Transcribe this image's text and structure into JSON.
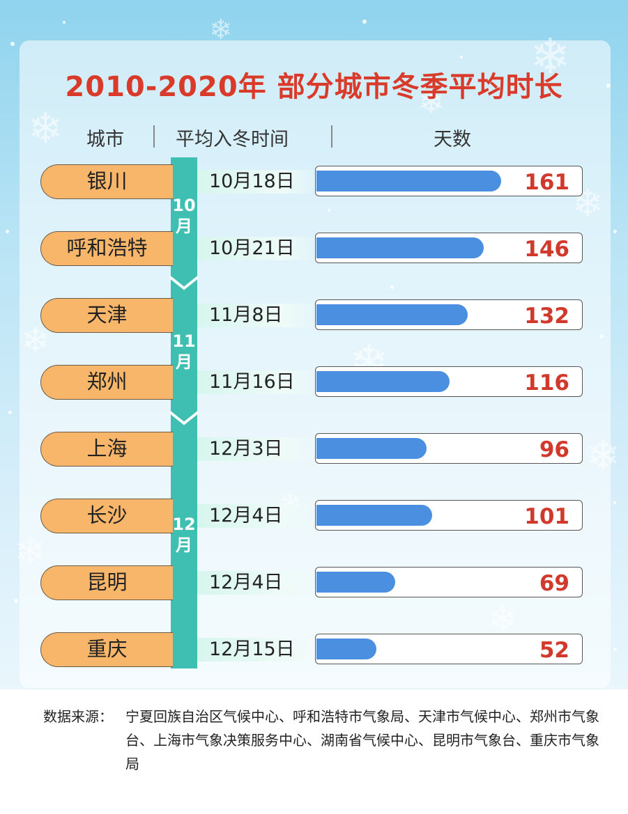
{
  "title": "2010-2020年 部分城市冬季平均时长",
  "headers": {
    "city": "城市",
    "date": "平均入冬时间",
    "days": "天数"
  },
  "months": [
    "10\n月",
    "11\n月",
    "12\n月"
  ],
  "colors": {
    "title": "#d93a2a",
    "timeline": "#3fbfb2",
    "city_fill": "#f7b66a",
    "bar": "#4a8fe0",
    "value": "#d0392b"
  },
  "chart_data": {
    "type": "bar",
    "orientation": "horizontal",
    "categories": [
      "银川",
      "呼和浩特",
      "天津",
      "郑州",
      "上海",
      "长沙",
      "昆明",
      "重庆"
    ],
    "start_dates": [
      "10月18日",
      "10月21日",
      "11月8日",
      "11月16日",
      "12月3日",
      "12月4日",
      "12月4日",
      "12月15日"
    ],
    "values": [
      161,
      146,
      132,
      116,
      96,
      101,
      69,
      52
    ],
    "xlim": [
      0,
      180
    ],
    "title": "2010-2020年 部分城市冬季平均时长"
  },
  "source": {
    "label": "数据来源：",
    "text": "宁夏回族自治区气候中心、呼和浩特市气象局、天津市气候中心、郑州市气象台、上海市气象决策服务中心、湖南省气候中心、昆明市气象台、重庆市气象局"
  }
}
